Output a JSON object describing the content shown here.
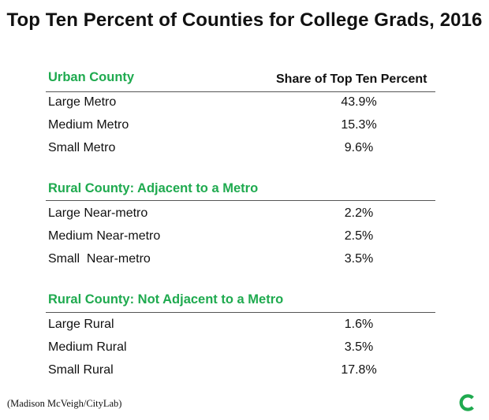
{
  "colors": {
    "accent": "#1faa4f",
    "text": "#111111",
    "rule": "#555555"
  },
  "chart_data": {
    "type": "table",
    "title": "Top Ten Percent of Counties for College Grads, 2016",
    "column_header": "Share of Top Ten Percent",
    "groups": [
      {
        "name": "Urban County",
        "rows": [
          {
            "label": "Large Metro",
            "value": "43.9%"
          },
          {
            "label": "Medium Metro",
            "value": "15.3%"
          },
          {
            "label": "Small Metro",
            "value": "9.6%"
          }
        ]
      },
      {
        "name": "Rural County: Adjacent to a Metro",
        "rows": [
          {
            "label": "Large Near-metro",
            "value": "2.2%"
          },
          {
            "label": "Medium Near-metro",
            "value": "2.5%"
          },
          {
            "label": "Small  Near-metro",
            "value": "3.5%"
          }
        ]
      },
      {
        "name": "Rural County: Not Adjacent to a Metro",
        "rows": [
          {
            "label": "Large Rural",
            "value": "1.6%"
          },
          {
            "label": "Medium Rural",
            "value": "3.5%"
          },
          {
            "label": "Small Rural",
            "value": "17.8%"
          }
        ]
      }
    ],
    "credit": "(Madison McVeigh/CityLab)"
  },
  "logo_icon": "citylab-logo-icon"
}
